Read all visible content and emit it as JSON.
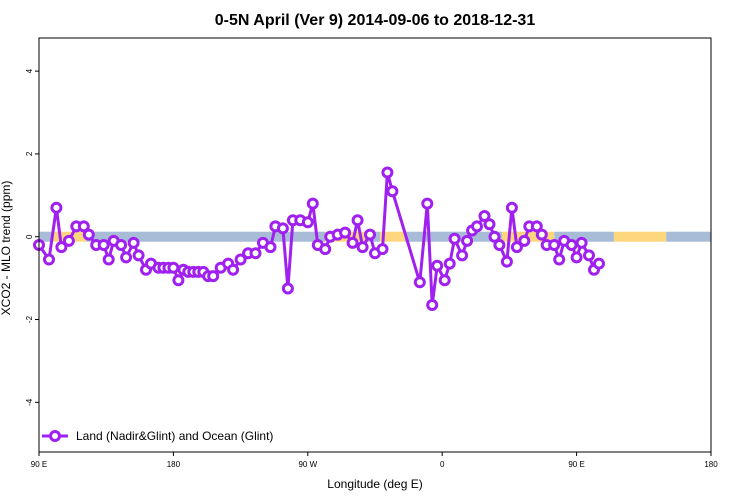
{
  "chart_data": {
    "type": "line",
    "title": "0-5N April (Ver 9)   2014-09-06 to 2018-12-31",
    "xlabel": "Longitude (deg E)",
    "ylabel": "XCO2 - MLO trend (ppm)",
    "xlim": [
      -90,
      180
    ],
    "ylim": [
      -5.2,
      4.8
    ],
    "x_tick_values": [
      -90,
      -36,
      18,
      72,
      126,
      180
    ],
    "x_tick_labels": [
      "90 E",
      "180",
      "90 W",
      "0",
      "90 E",
      "180"
    ],
    "y_tick_values": [
      4,
      2,
      0,
      -2,
      -4
    ],
    "y_tick_labels": [
      "4",
      "2",
      "0",
      "-2",
      "-4"
    ],
    "grid": false,
    "legend_position": "bottom-left",
    "surface_band": {
      "y": 0,
      "colors": {
        "ocean": "#a8bcd8",
        "land": "#fdd67e"
      },
      "segments": [
        {
          "type": "ocean",
          "from": -90,
          "to": -85
        },
        {
          "type": "land",
          "from": -85,
          "to": -71
        },
        {
          "type": "ocean",
          "from": -71,
          "to": 25
        },
        {
          "type": "land",
          "from": 25,
          "to": 41
        },
        {
          "type": "ocean",
          "from": 41,
          "to": 47
        },
        {
          "type": "land",
          "from": 47,
          "to": 57
        },
        {
          "type": "ocean",
          "from": 57,
          "to": 96
        },
        {
          "type": "land",
          "from": 96,
          "to": 117
        },
        {
          "type": "ocean",
          "from": 117,
          "to": 141
        },
        {
          "type": "land",
          "from": 141,
          "to": 162
        },
        {
          "type": "ocean",
          "from": 162,
          "to": 180
        }
      ]
    },
    "series": [
      {
        "name": "Land (Nadir&Glint) and Ocean (Glint)",
        "color": "#a020f0",
        "points": [
          [
            -90,
            -0.2
          ],
          [
            -86,
            -0.55
          ],
          [
            -83,
            0.7
          ],
          [
            -81,
            -0.25
          ],
          [
            -78,
            -0.1
          ],
          [
            -75,
            0.25
          ],
          [
            -72,
            0.25
          ],
          [
            -70,
            0.05
          ],
          [
            -67,
            -0.2
          ],
          [
            -64,
            -0.2
          ],
          [
            -62,
            -0.55
          ],
          [
            -60,
            -0.1
          ],
          [
            -57,
            -0.2
          ],
          [
            -55,
            -0.5
          ],
          [
            -52,
            -0.15
          ],
          [
            -50,
            -0.45
          ],
          [
            -47,
            -0.8
          ],
          [
            -45,
            -0.65
          ],
          [
            -42,
            -0.75
          ],
          [
            -40,
            -0.75
          ],
          [
            -38,
            -0.75
          ],
          [
            -36,
            -0.75
          ],
          [
            -34,
            -1.05
          ],
          [
            -32,
            -0.8
          ],
          [
            -30,
            -0.85
          ],
          [
            -28,
            -0.85
          ],
          [
            -26,
            -0.85
          ],
          [
            -24,
            -0.85
          ],
          [
            -22,
            -0.95
          ],
          [
            -20,
            -0.95
          ],
          [
            -17,
            -0.75
          ],
          [
            -14,
            -0.65
          ],
          [
            -12,
            -0.8
          ],
          [
            -9,
            -0.55
          ],
          [
            -6,
            -0.4
          ],
          [
            -3,
            -0.4
          ],
          [
            0,
            -0.15
          ],
          [
            3,
            -0.25
          ],
          [
            5,
            0.25
          ],
          [
            8,
            0.2
          ],
          [
            10,
            -1.25
          ],
          [
            12,
            0.4
          ],
          [
            15,
            0.4
          ],
          [
            18,
            0.35
          ],
          [
            20,
            0.8
          ],
          [
            22,
            -0.2
          ],
          [
            25,
            -0.3
          ],
          [
            27,
            0.0
          ],
          [
            30,
            0.05
          ],
          [
            33,
            0.1
          ],
          [
            36,
            -0.15
          ],
          [
            38,
            0.4
          ],
          [
            40,
            -0.25
          ],
          [
            43,
            0.05
          ],
          [
            45,
            -0.4
          ],
          [
            48,
            -0.3
          ],
          [
            50,
            1.55
          ],
          [
            52,
            1.1
          ],
          [
            63,
            -1.1
          ],
          [
            66,
            0.8
          ],
          [
            68,
            -1.65
          ],
          [
            70,
            -0.7
          ],
          [
            73,
            -1.05
          ],
          [
            75,
            -0.65
          ],
          [
            77,
            -0.05
          ],
          [
            80,
            -0.45
          ],
          [
            82,
            -0.1
          ],
          [
            84,
            0.15
          ],
          [
            86,
            0.25
          ],
          [
            89,
            0.5
          ],
          [
            91,
            0.3
          ],
          [
            93,
            0.0
          ],
          [
            95,
            -0.2
          ],
          [
            98,
            -0.6
          ],
          [
            100,
            0.7
          ],
          [
            102,
            -0.25
          ],
          [
            105,
            -0.1
          ],
          [
            107,
            0.25
          ],
          [
            110,
            0.25
          ],
          [
            112,
            0.05
          ],
          [
            114,
            -0.2
          ],
          [
            117,
            -0.2
          ],
          [
            119,
            -0.55
          ],
          [
            121,
            -0.1
          ],
          [
            124,
            -0.2
          ],
          [
            126,
            -0.5
          ],
          [
            128,
            -0.15
          ],
          [
            131,
            -0.45
          ],
          [
            133,
            -0.8
          ],
          [
            135,
            -0.65
          ]
        ]
      }
    ]
  }
}
